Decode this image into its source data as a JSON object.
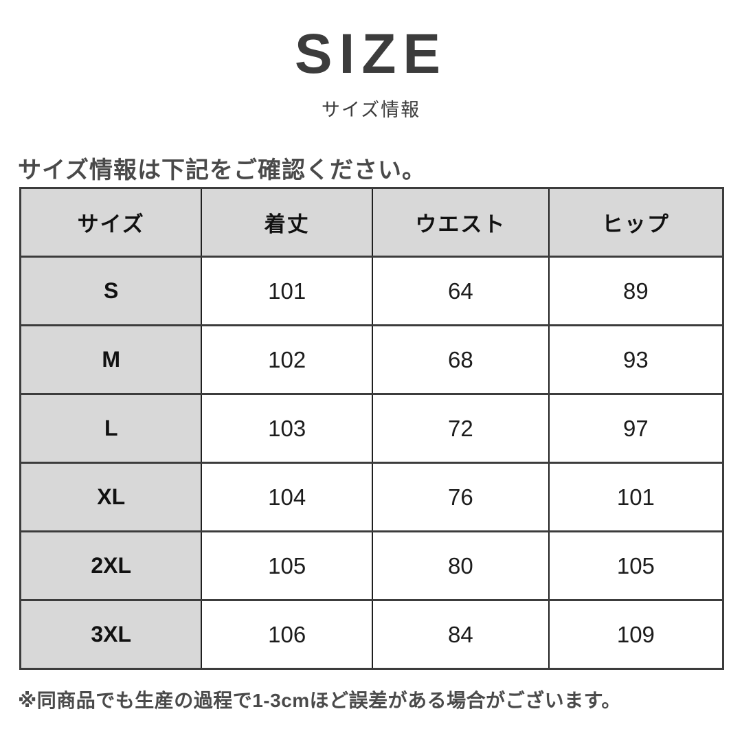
{
  "page": {
    "title": "SIZE",
    "subtitle": "サイズ情報",
    "section_heading": "サイズ情報は下記をご確認ください。",
    "footnote": "※同商品でも生産の過程で1-3cmほど誤差がある場合がございます。"
  },
  "size_table": {
    "columns": [
      "サイズ",
      "着丈",
      "ウエスト",
      "ヒップ"
    ],
    "rows": [
      {
        "size": "S",
        "values": [
          "101",
          "64",
          "89"
        ]
      },
      {
        "size": "M",
        "values": [
          "102",
          "68",
          "93"
        ]
      },
      {
        "size": "L",
        "values": [
          "103",
          "72",
          "97"
        ]
      },
      {
        "size": "XL",
        "values": [
          "104",
          "76",
          "101"
        ]
      },
      {
        "size": "2XL",
        "values": [
          "105",
          "80",
          "105"
        ]
      },
      {
        "size": "3XL",
        "values": [
          "106",
          "84",
          "109"
        ]
      }
    ]
  },
  "colors": {
    "background": "#ffffff",
    "title_text": "#3c3c3c",
    "heading_text": "#4a4a4a",
    "table_header_bg": "#d8d8d8",
    "table_border_dark": "#3c3c3c",
    "table_border_inner": "#1f1f1f",
    "cell_text": "#1c1c1c"
  }
}
